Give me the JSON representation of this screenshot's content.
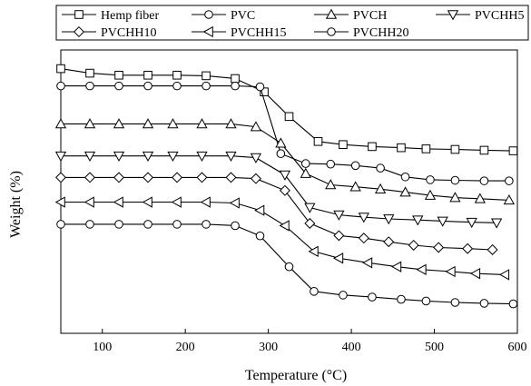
{
  "chart_data": {
    "type": "line",
    "title": "",
    "xlabel": "Temperature (°C)",
    "ylabel": "Weight (%)",
    "xlim": [
      50,
      600
    ],
    "ylim": [
      0,
      100
    ],
    "xticks": [
      100,
      200,
      300,
      400,
      500,
      600
    ],
    "y_tick_labels_shown": false,
    "grid": false,
    "legend_placement": "top",
    "series": [
      {
        "name": "Hemp fiber",
        "marker": "square",
        "x": [
          50,
          85,
          120,
          155,
          190,
          225,
          260,
          295,
          325,
          360,
          390,
          425,
          460,
          490,
          525,
          560,
          595
        ],
        "y": [
          93.4,
          91.8,
          91.1,
          91.1,
          91.1,
          90.9,
          89.9,
          85.2,
          76.5,
          67.7,
          66.6,
          65.9,
          65.5,
          65.1,
          64.9,
          64.6,
          64.4
        ]
      },
      {
        "name": "PVC",
        "marker": "circle",
        "x": [
          50,
          85,
          120,
          155,
          190,
          225,
          260,
          290,
          315,
          345,
          375,
          405,
          435,
          465,
          495,
          525,
          560,
          590
        ],
        "y": [
          87.3,
          87.3,
          87.3,
          87.3,
          87.3,
          87.3,
          87.3,
          87.0,
          63.4,
          59.9,
          59.7,
          59.2,
          58.3,
          55.2,
          54.2,
          54.0,
          53.8,
          53.8
        ]
      },
      {
        "name": "PVCH",
        "marker": "triangle-up",
        "x": [
          50,
          85,
          120,
          155,
          185,
          220,
          255,
          285,
          315,
          345,
          375,
          405,
          435,
          465,
          495,
          525,
          555,
          590
        ],
        "y": [
          73.9,
          73.9,
          73.9,
          73.9,
          73.9,
          73.9,
          73.9,
          72.9,
          67.1,
          56.4,
          52.4,
          51.7,
          50.9,
          49.8,
          48.7,
          47.9,
          47.5,
          47.0
        ]
      },
      {
        "name": "PVCHH5",
        "marker": "triangle-down",
        "x": [
          50,
          85,
          120,
          155,
          185,
          220,
          255,
          285,
          320,
          350,
          385,
          415,
          445,
          480,
          510,
          545,
          575
        ],
        "y": [
          62.6,
          62.6,
          62.6,
          62.6,
          62.6,
          62.6,
          62.6,
          62.0,
          55.9,
          44.4,
          41.8,
          41.0,
          40.4,
          40.0,
          39.6,
          39.2,
          39.0
        ]
      },
      {
        "name": "PVCHH10",
        "marker": "diamond",
        "x": [
          50,
          85,
          120,
          155,
          190,
          220,
          255,
          285,
          320,
          350,
          385,
          415,
          445,
          475,
          505,
          540,
          570
        ],
        "y": [
          55.0,
          55.0,
          55.0,
          55.0,
          55.0,
          55.0,
          55.0,
          54.6,
          50.4,
          38.8,
          34.5,
          33.6,
          32.3,
          31.1,
          30.3,
          29.9,
          29.5
        ]
      },
      {
        "name": "PVCHH15",
        "marker": "triangle-left",
        "x": [
          50,
          85,
          120,
          155,
          190,
          225,
          260,
          290,
          320,
          355,
          385,
          420,
          455,
          485,
          520,
          550,
          585
        ],
        "y": [
          46.3,
          46.3,
          46.3,
          46.3,
          46.3,
          46.3,
          46.0,
          43.4,
          38.0,
          28.9,
          26.5,
          24.9,
          23.5,
          22.5,
          21.8,
          21.1,
          20.7
        ]
      },
      {
        "name": "PVCHH20",
        "marker": "circle",
        "x": [
          50,
          85,
          120,
          155,
          190,
          225,
          260,
          290,
          325,
          355,
          390,
          425,
          460,
          490,
          525,
          560,
          595
        ],
        "y": [
          38.5,
          38.5,
          38.5,
          38.5,
          38.5,
          38.5,
          38.0,
          34.4,
          23.5,
          14.8,
          13.5,
          12.8,
          12.0,
          11.4,
          10.9,
          10.6,
          10.4
        ]
      }
    ]
  }
}
